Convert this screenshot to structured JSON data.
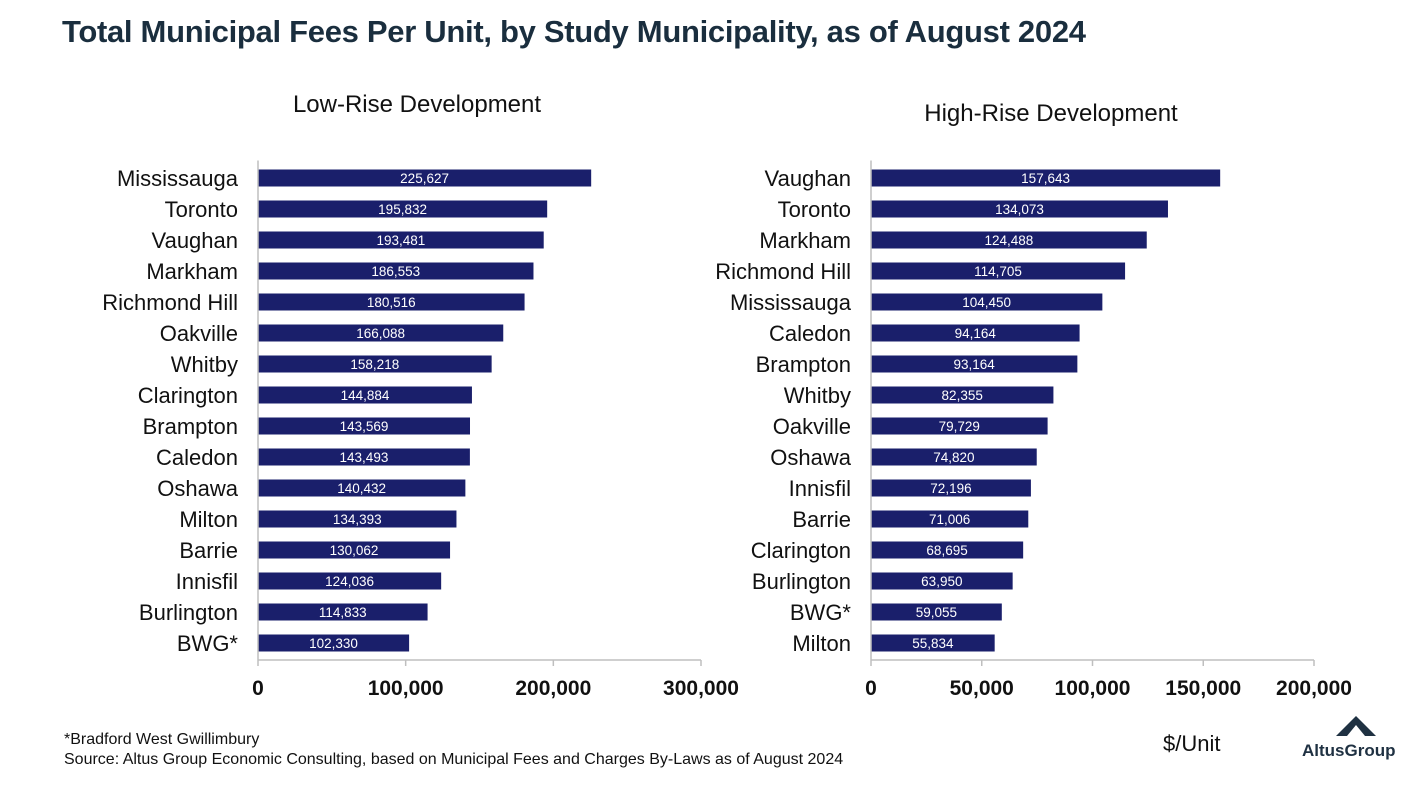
{
  "title": "Total Municipal Fees Per Unit, by Study Municipality, as of August 2024",
  "footnote": "*Bradford West Gwillimbury",
  "source": "Source:  Altus Group Economic Consulting, based on Municipal Fees and Charges By-Laws as of August 2024",
  "unit_label": "$/Unit",
  "logo": {
    "text": "AltusGroup",
    "icon": "altus-triangle-icon"
  },
  "colors": {
    "bar": "#1a1f6b",
    "title": "#1a2e3e",
    "axis": "#bfbfbf"
  },
  "chart_data": [
    {
      "type": "bar",
      "orientation": "horizontal",
      "title": "Low-Rise Development",
      "categories": [
        "Mississauga",
        "Toronto",
        "Vaughan",
        "Markham",
        "Richmond Hill",
        "Oakville",
        "Whitby",
        "Clarington",
        "Brampton",
        "Caledon",
        "Oshawa",
        "Milton",
        "Barrie",
        "Innisfil",
        "Burlington",
        "BWG*"
      ],
      "values": [
        225627,
        195832,
        193481,
        186553,
        180516,
        166088,
        158218,
        144884,
        143569,
        143493,
        140432,
        134393,
        130062,
        124036,
        114833,
        102330
      ],
      "value_labels": [
        "225,627",
        "195,832",
        "193,481",
        "186,553",
        "180,516",
        "166,088",
        "158,218",
        "144,884",
        "143,569",
        "143,493",
        "140,432",
        "134,393",
        "130,062",
        "124,036",
        "114,833",
        "102,330"
      ],
      "xlim": [
        0,
        300000
      ],
      "ticks": [
        0,
        100000,
        200000,
        300000
      ],
      "tick_labels": [
        "0",
        "100,000",
        "200,000",
        "300,000"
      ],
      "grid": false,
      "legend": false
    },
    {
      "type": "bar",
      "orientation": "horizontal",
      "title": "High-Rise Development",
      "categories": [
        "Vaughan",
        "Toronto",
        "Markham",
        "Richmond Hill",
        "Mississauga",
        "Caledon",
        "Brampton",
        "Whitby",
        "Oakville",
        "Oshawa",
        "Innisfil",
        "Barrie",
        "Clarington",
        "Burlington",
        "BWG*",
        "Milton"
      ],
      "values": [
        157643,
        134073,
        124488,
        114705,
        104450,
        94164,
        93164,
        82355,
        79729,
        74820,
        72196,
        71006,
        68695,
        63950,
        59055,
        55834
      ],
      "value_labels": [
        "157,643",
        "134,073",
        "124,488",
        "114,705",
        "104,450",
        "94,164",
        "93,164",
        "82,355",
        "79,729",
        "74,820",
        "72,196",
        "71,006",
        "68,695",
        "63,950",
        "59,055",
        "55,834"
      ],
      "xlim": [
        0,
        200000
      ],
      "ticks": [
        0,
        50000,
        100000,
        150000,
        200000
      ],
      "tick_labels": [
        "0",
        "50,000",
        "100,000",
        "150,000",
        "200,000"
      ],
      "grid": false,
      "legend": false
    }
  ]
}
